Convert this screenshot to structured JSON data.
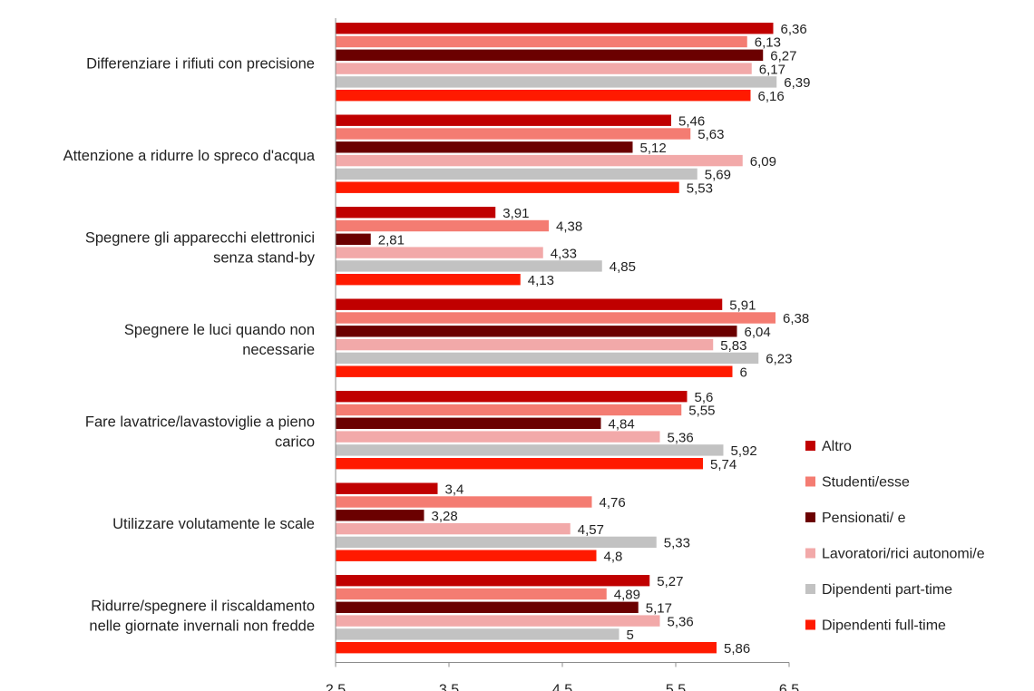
{
  "chart_data": {
    "type": "bar",
    "orientation": "horizontal",
    "categories": [
      [
        "Differenziare i rifiuti con precisione"
      ],
      [
        "Attenzione a ridurre lo spreco d'acqua"
      ],
      [
        "Spegnere gli apparecchi elettronici",
        "senza stand-by"
      ],
      [
        "Spegnere le luci quando non",
        "necessarie"
      ],
      [
        "Fare lavatrice/lavastoviglie a pieno",
        "carico"
      ],
      [
        "Utilizzare volutamente le scale"
      ],
      [
        "Ridurre/spegnere il riscaldamento",
        "nelle giornate invernali non fredde"
      ]
    ],
    "series": [
      {
        "name": "Altro",
        "color": "#c00000",
        "values": [
          6.36,
          5.46,
          3.91,
          5.91,
          5.6,
          3.4,
          5.27
        ],
        "labels": [
          "6,36",
          "5,46",
          "3,91",
          "5,91",
          "5,6",
          "3,4",
          "5,27"
        ]
      },
      {
        "name": "Studenti/esse",
        "color": "#f47c72",
        "values": [
          6.13,
          5.63,
          4.38,
          6.38,
          5.55,
          4.76,
          4.89
        ],
        "labels": [
          "6,13",
          "5,63",
          "4,38",
          "6,38",
          "5,55",
          "4,76",
          "4,89"
        ]
      },
      {
        "name": "Pensionati/ e",
        "color": "#6b0000",
        "values": [
          6.27,
          5.12,
          2.81,
          6.04,
          4.84,
          3.28,
          5.17
        ],
        "labels": [
          "6,27",
          "5,12",
          "2,81",
          "6,04",
          "4,84",
          "3,28",
          "5,17"
        ]
      },
      {
        "name": "Lavoratori/rici autonomi/e",
        "color": "#f2a9a9",
        "values": [
          6.17,
          6.09,
          4.33,
          5.83,
          5.36,
          4.57,
          5.36
        ],
        "labels": [
          "6,17",
          "6,09",
          "4,33",
          "5,83",
          "5,36",
          "4,57",
          "5,36"
        ]
      },
      {
        "name": "Dipendenti part-time",
        "color": "#c2c2c2",
        "values": [
          6.39,
          5.69,
          4.85,
          6.23,
          5.92,
          5.33,
          5
        ],
        "labels": [
          "6,39",
          "5,69",
          "4,85",
          "6,23",
          "5,92",
          "5,33",
          "5"
        ]
      },
      {
        "name": "Dipendenti full-time",
        "color": "#ff1a00",
        "values": [
          6.16,
          5.53,
          4.13,
          6,
          5.74,
          4.8,
          5.86
        ],
        "labels": [
          "6,16",
          "5,53",
          "4,13",
          "6",
          "5,74",
          "4,8",
          "5,86"
        ]
      }
    ],
    "xlim": [
      2.5,
      6.5
    ],
    "xticks": [
      2.5,
      3.5,
      4.5,
      5.5,
      6.5
    ],
    "xtick_labels": [
      "2,5",
      "3,5",
      "4,5",
      "5,5",
      "6,5"
    ],
    "grid": false,
    "legend_position": "right"
  }
}
